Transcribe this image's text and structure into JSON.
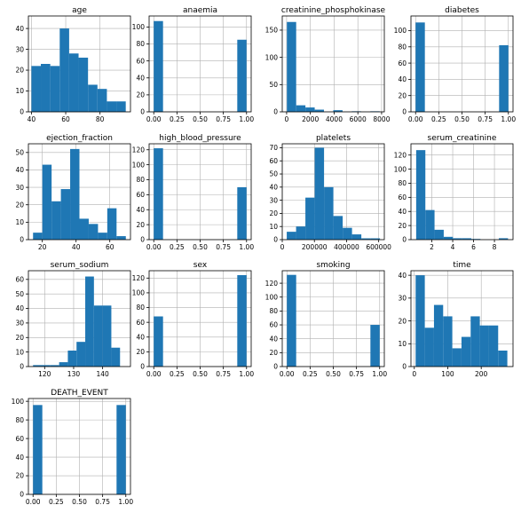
{
  "figure": {
    "bar_color": "#1f77b4",
    "grid_color": "#b0b0b0",
    "axes_color": "#000000"
  },
  "chart_data": [
    {
      "type": "bar",
      "title": "age",
      "xlim": [
        38.25,
        97.75
      ],
      "ylim": [
        0,
        46
      ],
      "xticks": [
        40,
        60,
        80
      ],
      "yticks": [
        0,
        10,
        20,
        30,
        40
      ],
      "bin_edges": [
        40,
        45.5,
        51,
        56.5,
        62,
        67.5,
        73,
        78.5,
        84,
        89.5,
        95
      ],
      "values": [
        22,
        23,
        22,
        40,
        28,
        26,
        13,
        11,
        5,
        5
      ],
      "grid": true
    },
    {
      "type": "bar",
      "title": "anaemia",
      "xlim": [
        -0.05,
        1.05
      ],
      "ylim": [
        0,
        113
      ],
      "xticks": [
        0,
        0.25,
        0.5,
        0.75,
        1
      ],
      "xtick_labels": [
        "0.00",
        "0.25",
        "0.50",
        "0.75",
        "1.00"
      ],
      "yticks": [
        0,
        20,
        40,
        60,
        80,
        100
      ],
      "bin_edges": [
        0,
        0.1,
        0.2,
        0.3,
        0.4,
        0.5,
        0.6,
        0.7,
        0.8,
        0.9,
        1
      ],
      "values": [
        107,
        0,
        0,
        0,
        0,
        0,
        0,
        0,
        0,
        85
      ],
      "grid": true
    },
    {
      "type": "bar",
      "title": "creatinine_phosphokinase",
      "xlim": [
        -368,
        8229
      ],
      "ylim": [
        0,
        176
      ],
      "xticks": [
        0,
        2000,
        4000,
        6000,
        8000
      ],
      "yticks": [
        0,
        50,
        100,
        150
      ],
      "bin_edges": [
        23,
        804,
        1585,
        2366,
        3147,
        3928,
        4709,
        5490,
        6271,
        7052,
        7833
      ],
      "values": [
        165,
        12,
        8,
        4,
        0,
        3,
        0,
        1,
        0,
        1
      ],
      "grid": true
    },
    {
      "type": "bar",
      "title": "diabetes",
      "xlim": [
        -0.05,
        1.05
      ],
      "ylim": [
        0,
        118
      ],
      "xticks": [
        0,
        0.25,
        0.5,
        0.75,
        1
      ],
      "xtick_labels": [
        "0.00",
        "0.25",
        "0.50",
        "0.75",
        "1.00"
      ],
      "yticks": [
        0,
        20,
        40,
        60,
        80,
        100
      ],
      "bin_edges": [
        0,
        0.1,
        0.2,
        0.3,
        0.4,
        0.5,
        0.6,
        0.7,
        0.8,
        0.9,
        1
      ],
      "values": [
        110,
        0,
        0,
        0,
        0,
        0,
        0,
        0,
        0,
        82
      ],
      "grid": true
    },
    {
      "type": "bar",
      "title": "ejection_fraction",
      "xlim": [
        11.75,
        72.25
      ],
      "ylim": [
        0,
        55
      ],
      "xticks": [
        20,
        40,
        60
      ],
      "yticks": [
        0,
        10,
        20,
        30,
        40,
        50
      ],
      "bin_edges": [
        14.5,
        20,
        25.5,
        31,
        36.5,
        42,
        47.5,
        53,
        58.5,
        64,
        69.5
      ],
      "values": [
        4,
        43,
        22,
        29,
        52,
        12,
        9,
        4,
        18,
        2
      ],
      "grid": true
    },
    {
      "type": "bar",
      "title": "high_blood_pressure",
      "xlim": [
        -0.05,
        1.05
      ],
      "ylim": [
        0,
        128
      ],
      "xticks": [
        0,
        0.25,
        0.5,
        0.75,
        1
      ],
      "xtick_labels": [
        "0.00",
        "0.25",
        "0.50",
        "0.75",
        "1.00"
      ],
      "yticks": [
        0,
        20,
        40,
        60,
        80,
        100,
        120
      ],
      "bin_edges": [
        0,
        0.1,
        0.2,
        0.3,
        0.4,
        0.5,
        0.6,
        0.7,
        0.8,
        0.9,
        1
      ],
      "values": [
        122,
        0,
        0,
        0,
        0,
        0,
        0,
        0,
        0,
        70
      ],
      "grid": true
    },
    {
      "type": "bar",
      "title": "platelets",
      "xlim": [
        0,
        635000
      ],
      "ylim": [
        0,
        73
      ],
      "xticks": [
        0,
        200000,
        400000,
        600000
      ],
      "yticks": [
        0,
        10,
        20,
        30,
        40,
        50,
        60,
        70
      ],
      "bin_edges": [
        28000,
        86000,
        144000,
        202000,
        260000,
        318000,
        376000,
        434000,
        492000,
        550000,
        608000
      ],
      "values": [
        6,
        10,
        32,
        70,
        40,
        18,
        9,
        4,
        1,
        1
      ],
      "grid": true
    },
    {
      "type": "bar",
      "title": "serum_creatinine",
      "xlim": [
        0.0,
        9.78
      ],
      "ylim": [
        0,
        136
      ],
      "xticks": [
        2,
        4,
        6,
        8
      ],
      "yticks": [
        0,
        20,
        40,
        60,
        80,
        100,
        120
      ],
      "bin_edges": [
        0.5,
        1.38,
        2.26,
        3.14,
        4.02,
        4.9,
        5.78,
        6.66,
        7.54,
        8.42,
        9.3
      ],
      "values": [
        127,
        42,
        14,
        4,
        2,
        2,
        1,
        0,
        0,
        2
      ],
      "grid": true
    },
    {
      "type": "bar",
      "title": "serum_sodium",
      "xlim": [
        114.4,
        149.6
      ],
      "ylim": [
        0,
        66
      ],
      "xticks": [
        120,
        130,
        140
      ],
      "yticks": [
        0,
        10,
        20,
        30,
        40,
        50,
        60
      ],
      "bin_edges": [
        116,
        119,
        122,
        125,
        128,
        131,
        134,
        137,
        140,
        143,
        146
      ],
      "values": [
        1,
        1,
        1,
        3,
        11,
        17,
        62,
        42,
        42,
        13
      ],
      "grid": true
    },
    {
      "type": "bar",
      "title": "sex",
      "xlim": [
        -0.05,
        1.05
      ],
      "ylim": [
        0,
        130
      ],
      "xticks": [
        0,
        0.25,
        0.5,
        0.75,
        1
      ],
      "xtick_labels": [
        "0.00",
        "0.25",
        "0.50",
        "0.75",
        "1.00"
      ],
      "yticks": [
        0,
        20,
        40,
        60,
        80,
        100,
        120
      ],
      "bin_edges": [
        0,
        0.1,
        0.2,
        0.3,
        0.4,
        0.5,
        0.6,
        0.7,
        0.8,
        0.9,
        1
      ],
      "values": [
        68,
        0,
        0,
        0,
        0,
        0,
        0,
        0,
        0,
        124
      ],
      "grid": true
    },
    {
      "type": "bar",
      "title": "smoking",
      "xlim": [
        -0.05,
        1.05
      ],
      "ylim": [
        0,
        138
      ],
      "xticks": [
        0,
        0.25,
        0.5,
        0.75,
        1
      ],
      "xtick_labels": [
        "0.00",
        "0.25",
        "0.50",
        "0.75",
        "1.00"
      ],
      "yticks": [
        0,
        20,
        40,
        60,
        80,
        100,
        120
      ],
      "bin_edges": [
        0,
        0.1,
        0.2,
        0.3,
        0.4,
        0.5,
        0.6,
        0.7,
        0.8,
        0.9,
        1
      ],
      "values": [
        132,
        0,
        0,
        0,
        0,
        0,
        0,
        0,
        0,
        60
      ],
      "grid": true
    },
    {
      "type": "bar",
      "title": "time",
      "xlim": [
        -10,
        295
      ],
      "ylim": [
        0,
        42
      ],
      "xticks": [
        0,
        100,
        200
      ],
      "yticks": [
        0,
        10,
        20,
        30,
        40
      ],
      "bin_edges": [
        4,
        31.4,
        58.8,
        86.2,
        113.6,
        141,
        168.4,
        195.8,
        223.2,
        250.6,
        278
      ],
      "values": [
        40,
        17,
        27,
        22,
        8,
        13,
        22,
        18,
        18,
        7
      ],
      "grid": true
    },
    {
      "type": "bar",
      "title": "DEATH_EVENT",
      "xlim": [
        -0.05,
        1.05
      ],
      "ylim": [
        0,
        103
      ],
      "xticks": [
        0,
        0.25,
        0.5,
        0.75,
        1
      ],
      "xtick_labels": [
        "0.00",
        "0.25",
        "0.50",
        "0.75",
        "1.00"
      ],
      "yticks": [
        0,
        20,
        40,
        60,
        80,
        100
      ],
      "bin_edges": [
        0,
        0.1,
        0.2,
        0.3,
        0.4,
        0.5,
        0.6,
        0.7,
        0.8,
        0.9,
        1
      ],
      "values": [
        96,
        0,
        0,
        0,
        0,
        0,
        0,
        0,
        0,
        96
      ],
      "grid": true
    }
  ]
}
